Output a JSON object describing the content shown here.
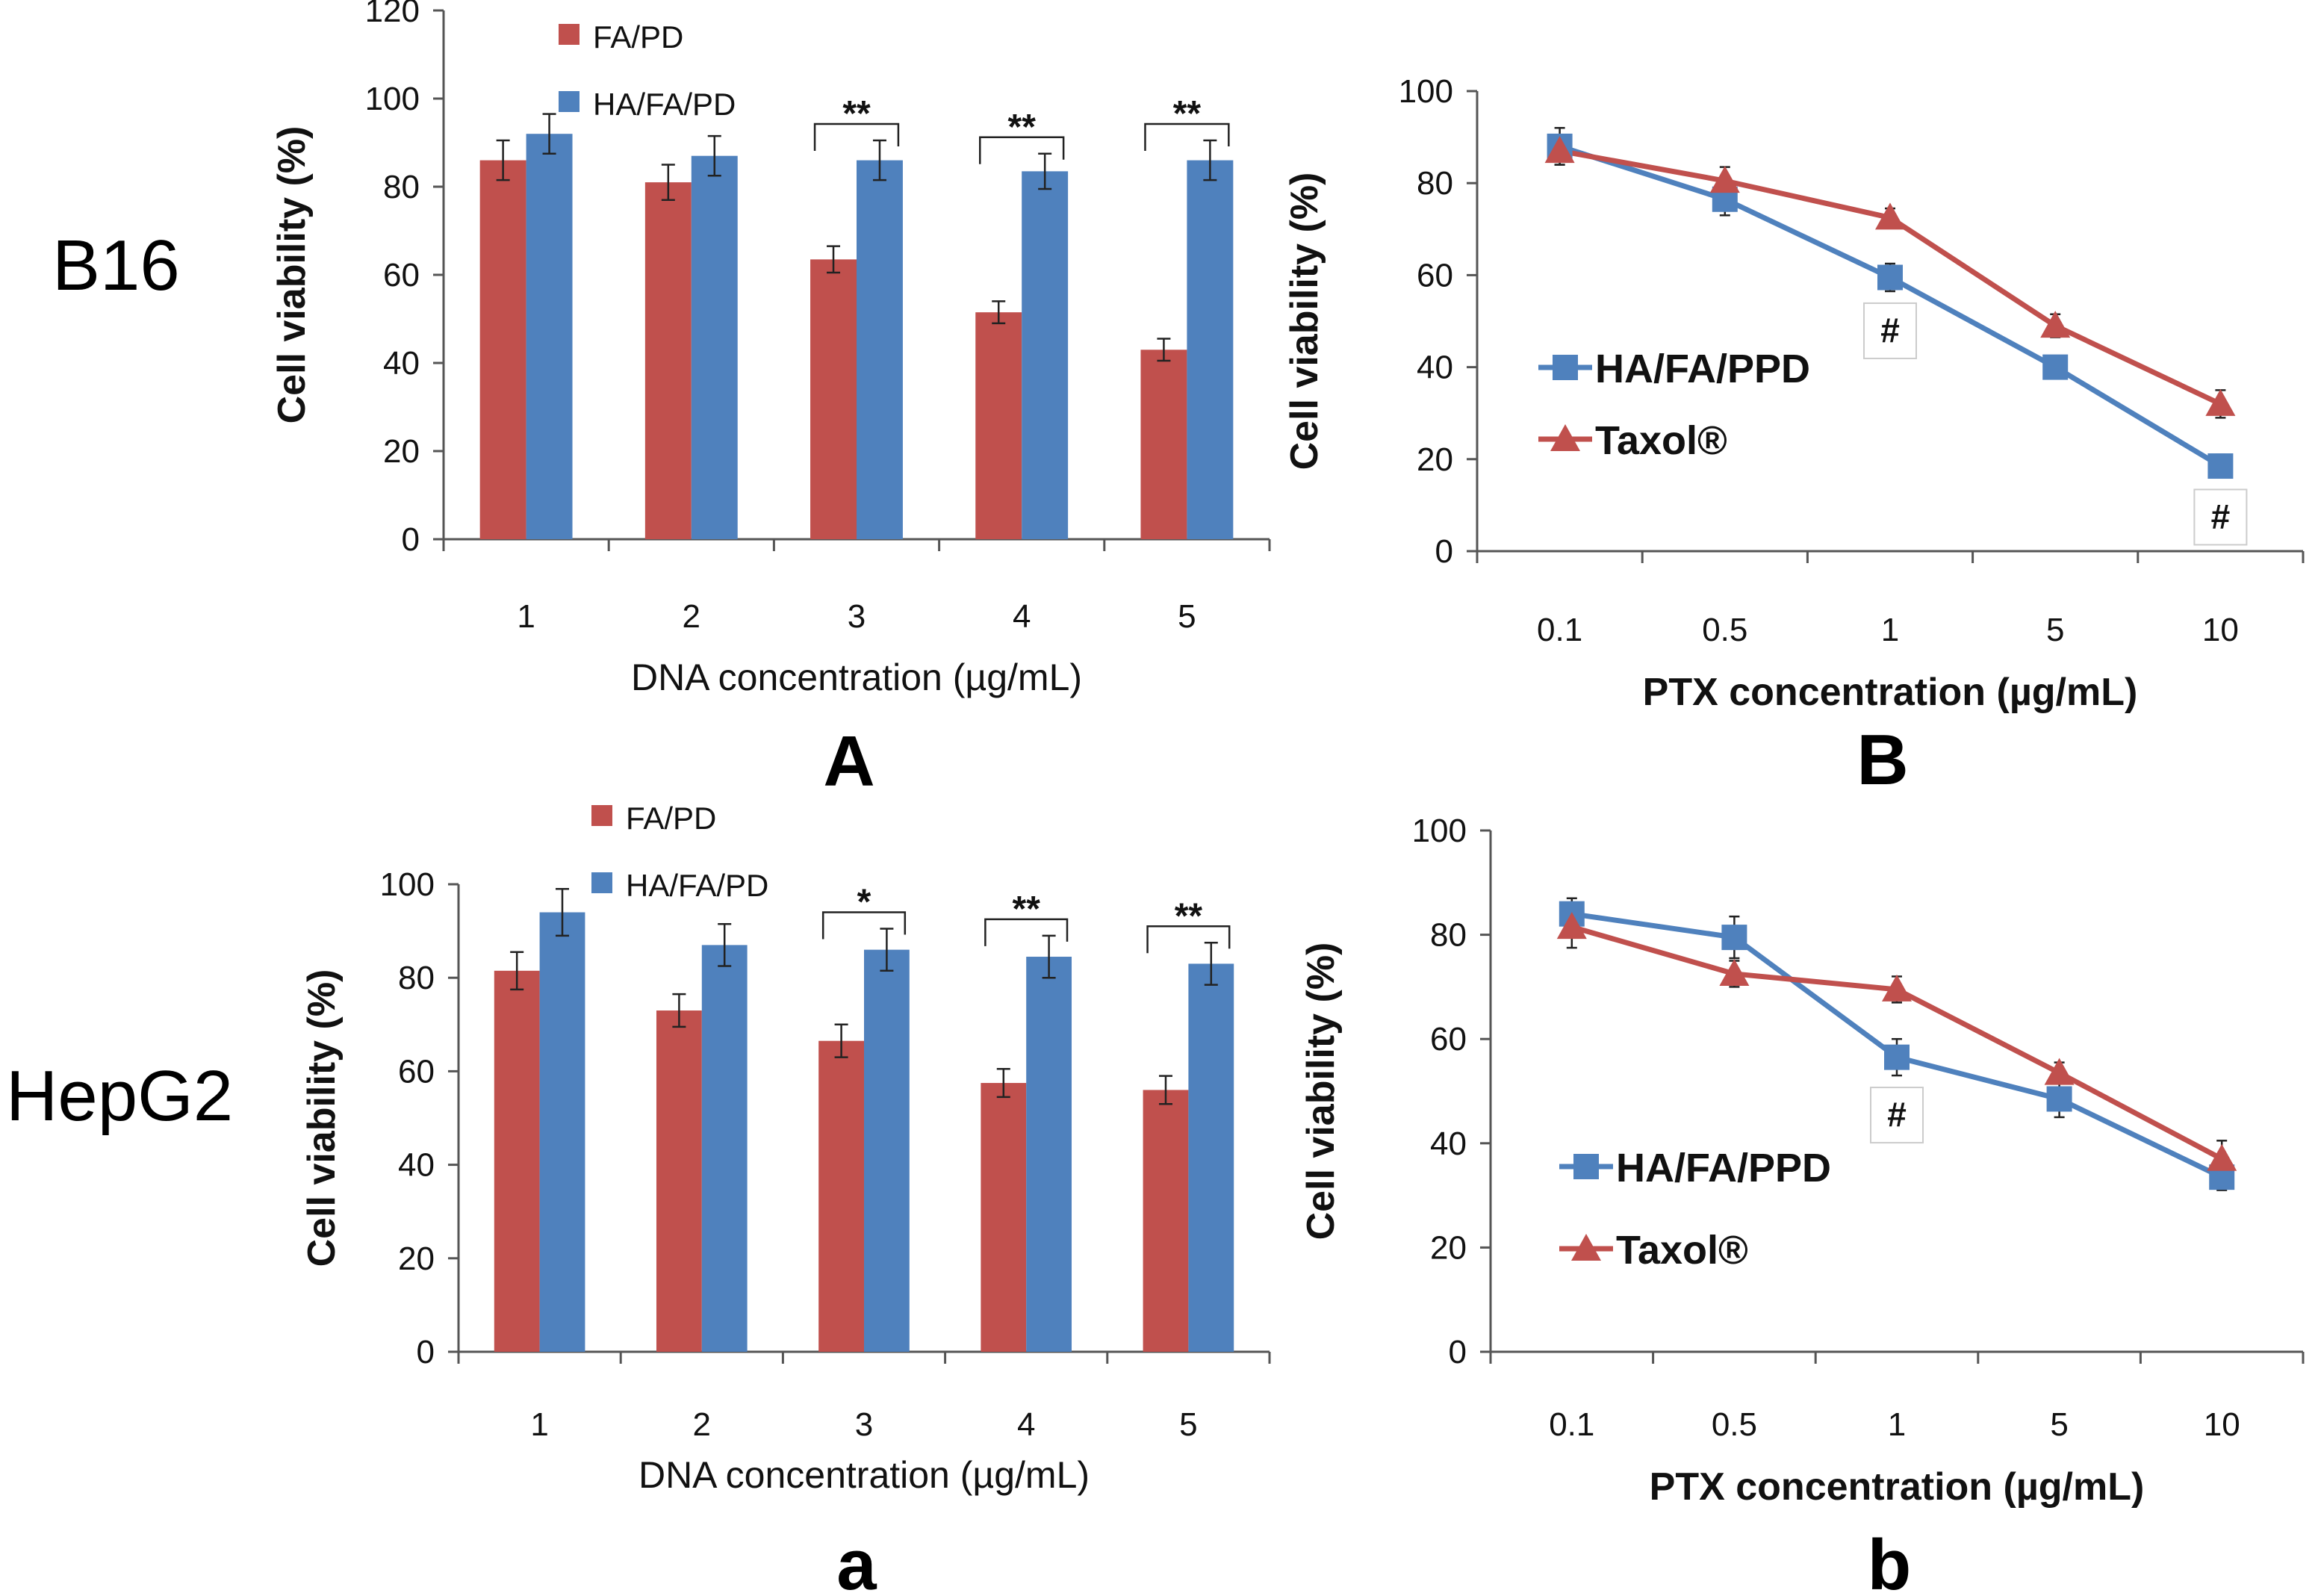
{
  "rows": [
    "B16",
    "HepG2"
  ],
  "colors": {
    "fa_pd": "#C0504D",
    "ha_fa_pd": "#4F81BD",
    "ha_fa_ppd": "#4F81BD",
    "taxol": "#C0504D"
  },
  "chart_data": [
    {
      "id": "A",
      "type": "bar",
      "panel_label": "A",
      "categories": [
        "1",
        "2",
        "3",
        "4",
        "5"
      ],
      "xlabel": "DNA concentration (µg/mL)",
      "ylabel": "Cell viability (%)",
      "ylim": [
        0,
        120
      ],
      "yticks": [
        "0",
        "20",
        "40",
        "60",
        "80",
        "100",
        "120"
      ],
      "series": [
        {
          "name": "FA/PD",
          "values": [
            86,
            81,
            63.5,
            51.5,
            43
          ],
          "errors": [
            4.5,
            4,
            3,
            2.5,
            2.5
          ]
        },
        {
          "name": "HA/FA/PD",
          "values": [
            92,
            87,
            86,
            83.5,
            86
          ],
          "errors": [
            4.5,
            4.5,
            4.5,
            4,
            4.5
          ]
        }
      ],
      "significance": [
        {
          "category": 2,
          "label": "**"
        },
        {
          "category": 3,
          "label": "**"
        },
        {
          "category": 4,
          "label": "**"
        }
      ]
    },
    {
      "id": "B",
      "type": "line",
      "panel_label": "B",
      "categories": [
        "0.1",
        "0.5",
        "1",
        "5",
        "10"
      ],
      "xlabel": "PTX concentration (µg/mL)",
      "ylabel": "Cell viability (%)",
      "ylim": [
        0,
        100
      ],
      "yticks": [
        "0",
        "20",
        "40",
        "60",
        "80",
        "100"
      ],
      "series": [
        {
          "name": "HA/FA/PPD",
          "marker": "square",
          "values": [
            88,
            76.5,
            59.5,
            40,
            18.5
          ],
          "errors": [
            4,
            3.5,
            3,
            2.5,
            2.5
          ]
        },
        {
          "name": "Taxol®",
          "marker": "triangle",
          "values": [
            87,
            80.5,
            72.5,
            49,
            32
          ],
          "errors": [
            3,
            3,
            2,
            2.5,
            3
          ]
        }
      ],
      "annotations": [
        {
          "category": 2,
          "label": "#"
        },
        {
          "category": 4,
          "label": "#"
        }
      ]
    },
    {
      "id": "a",
      "type": "bar",
      "panel_label": "a",
      "categories": [
        "1",
        "2",
        "3",
        "4",
        "5"
      ],
      "xlabel": "DNA concentration (µg/mL)",
      "ylabel": "Cell viability (%)",
      "ylim": [
        0,
        100
      ],
      "yticks": [
        "0",
        "20",
        "40",
        "60",
        "80",
        "100"
      ],
      "series": [
        {
          "name": "FA/PD",
          "values": [
            81.5,
            73,
            66.5,
            57.5,
            56
          ],
          "errors": [
            4,
            3.5,
            3.5,
            3,
            3
          ]
        },
        {
          "name": "HA/FA/PD",
          "values": [
            94,
            87,
            86,
            84.5,
            83
          ],
          "errors": [
            5,
            4.5,
            4.5,
            4.5,
            4.5
          ]
        }
      ],
      "significance": [
        {
          "category": 2,
          "label": "*"
        },
        {
          "category": 3,
          "label": "**"
        },
        {
          "category": 4,
          "label": "**"
        }
      ]
    },
    {
      "id": "b",
      "type": "line",
      "panel_label": "b",
      "categories": [
        "0.1",
        "0.5",
        "1",
        "5",
        "10"
      ],
      "xlabel": "PTX concentration (µg/mL)",
      "ylabel": "Cell viability (%)",
      "ylim": [
        0,
        100
      ],
      "yticks": [
        "0",
        "20",
        "40",
        "60",
        "80",
        "100"
      ],
      "series": [
        {
          "name": "HA/FA/PPD",
          "marker": "square",
          "values": [
            84,
            79.5,
            56.5,
            48.5,
            33.5
          ],
          "errors": [
            3,
            4,
            3.5,
            3.5,
            2.5
          ]
        },
        {
          "name": "Taxol®",
          "marker": "triangle",
          "values": [
            81.5,
            72.5,
            69.5,
            53.5,
            37
          ],
          "errors": [
            4,
            2.5,
            2.5,
            2,
            3.5
          ]
        }
      ],
      "annotations": [
        {
          "category": 2,
          "label": "#"
        }
      ]
    }
  ]
}
